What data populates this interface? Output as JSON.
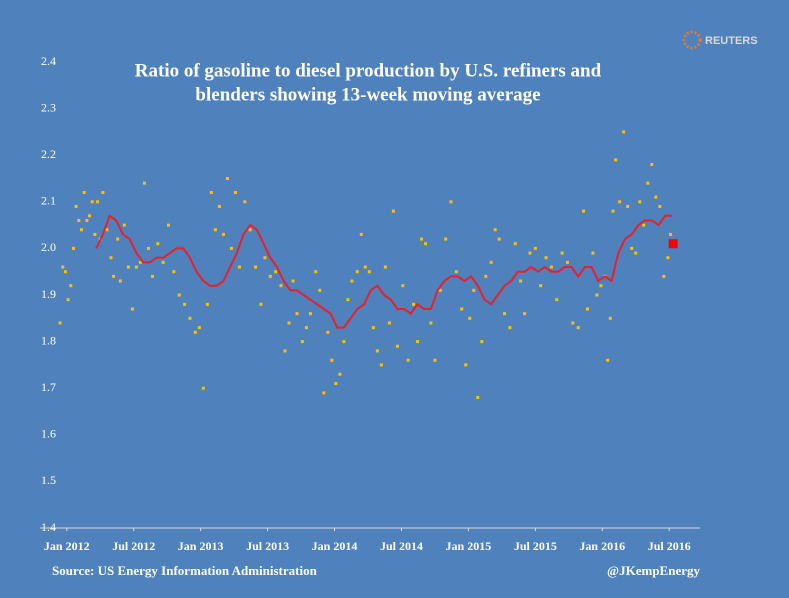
{
  "brand": "REUTERS",
  "chart_data": {
    "type": "scatter",
    "title": [
      "Ratio of  gasoline to diesel production by U.S. refiners and",
      "blenders showing  13-week moving average"
    ],
    "source": "Source: US Energy Information Administration",
    "credit": "@JKempEnergy",
    "xlim": [
      2011.8,
      2016.73
    ],
    "xticks": [
      {
        "value": 2012,
        "label": "Jan 2012"
      },
      {
        "value": 2012.5,
        "label": "Jul 2012"
      },
      {
        "value": 2013,
        "label": "Jan 2013"
      },
      {
        "value": 2013.5,
        "label": "Jul 2013"
      },
      {
        "value": 2014,
        "label": "Jan 2014"
      },
      {
        "value": 2014.5,
        "label": "Jul 2014"
      },
      {
        "value": 2015,
        "label": "Jan 2015"
      },
      {
        "value": 2015.5,
        "label": "Jul 2015"
      },
      {
        "value": 2016,
        "label": "Jan 2016"
      },
      {
        "value": 2016.5,
        "label": "Jul 2016"
      }
    ],
    "ylim": [
      1.4,
      2.4
    ],
    "yticks": [
      1.4,
      1.5,
      1.6,
      1.7,
      1.8,
      1.9,
      {
        "value": 2,
        "label": "2.0"
      },
      2.1,
      2.2,
      2.3,
      2.4
    ],
    "series": [
      {
        "kind": "points",
        "color": "#ffc000",
        "x": [
          2011.95,
          2011.97,
          2011.99,
          2012.01,
          2012.03,
          2012.05,
          2012.07,
          2012.09,
          2012.11,
          2012.13,
          2012.15,
          2012.17,
          2012.19,
          2012.21,
          2012.23,
          2012.25,
          2012.27,
          2012.3,
          2012.33,
          2012.35,
          2012.38,
          2012.4,
          2012.43,
          2012.46,
          2012.49,
          2012.52,
          2012.55,
          2012.58,
          2012.61,
          2012.64,
          2012.68,
          2012.72,
          2012.76,
          2012.8,
          2012.84,
          2012.88,
          2012.92,
          2012.96,
          2012.99,
          2013.02,
          2013.05,
          2013.08,
          2013.11,
          2013.14,
          2013.17,
          2013.2,
          2013.23,
          2013.26,
          2013.29,
          2013.33,
          2013.37,
          2013.41,
          2013.45,
          2013.48,
          2013.52,
          2013.56,
          2013.6,
          2013.63,
          2013.66,
          2013.69,
          2013.72,
          2013.76,
          2013.79,
          2013.82,
          2013.86,
          2013.89,
          2013.92,
          2013.95,
          2013.98,
          2014.01,
          2014.04,
          2014.07,
          2014.1,
          2014.13,
          2014.17,
          2014.2,
          2014.23,
          2014.26,
          2014.29,
          2014.32,
          2014.35,
          2014.38,
          2014.41,
          2014.44,
          2014.47,
          2014.51,
          2014.55,
          2014.59,
          2014.62,
          2014.65,
          2014.68,
          2014.72,
          2014.75,
          2014.79,
          2014.83,
          2014.87,
          2014.91,
          2014.95,
          2014.98,
          2015.01,
          2015.04,
          2015.07,
          2015.1,
          2015.13,
          2015.17,
          2015.2,
          2015.23,
          2015.27,
          2015.31,
          2015.35,
          2015.39,
          2015.42,
          2015.46,
          2015.5,
          2015.54,
          2015.58,
          2015.62,
          2015.66,
          2015.7,
          2015.74,
          2015.78,
          2015.82,
          2015.86,
          2015.89,
          2015.93,
          2015.96,
          2015.99,
          2016.02,
          2016.04,
          2016.06,
          2016.08,
          2016.1,
          2016.13,
          2016.16,
          2016.19,
          2016.22,
          2016.25,
          2016.28,
          2016.31,
          2016.34,
          2016.37,
          2016.4,
          2016.43,
          2016.46,
          2016.49,
          2016.51
        ],
        "values": [
          1.84,
          1.96,
          1.95,
          1.89,
          1.92,
          2.0,
          2.09,
          2.06,
          2.04,
          2.12,
          2.06,
          2.07,
          2.1,
          2.03,
          2.1,
          2.02,
          2.12,
          2.04,
          1.98,
          1.94,
          2.02,
          1.93,
          2.05,
          1.96,
          1.87,
          1.96,
          1.97,
          2.14,
          2.0,
          1.94,
          2.01,
          1.97,
          2.05,
          1.95,
          1.9,
          1.88,
          1.85,
          1.82,
          1.83,
          1.7,
          1.88,
          2.12,
          2.04,
          2.09,
          2.03,
          2.15,
          2.0,
          2.12,
          1.96,
          2.1,
          2.04,
          1.96,
          1.88,
          1.98,
          1.94,
          1.95,
          1.92,
          1.78,
          1.84,
          1.93,
          1.86,
          1.8,
          1.83,
          1.86,
          1.95,
          1.91,
          1.69,
          1.82,
          1.76,
          1.71,
          1.73,
          1.8,
          1.89,
          1.93,
          1.95,
          2.03,
          1.96,
          1.95,
          1.83,
          1.78,
          1.75,
          1.96,
          1.84,
          2.08,
          1.79,
          1.92,
          1.76,
          1.88,
          1.8,
          2.02,
          2.01,
          1.84,
          1.76,
          1.91,
          2.02,
          2.1,
          1.95,
          1.87,
          1.75,
          1.85,
          1.91,
          1.68,
          1.8,
          1.94,
          1.97,
          2.04,
          2.02,
          1.86,
          1.83,
          2.01,
          1.93,
          1.86,
          1.99,
          2.0,
          1.92,
          1.98,
          1.96,
          1.89,
          1.99,
          1.97,
          1.84,
          1.83,
          2.08,
          1.87,
          1.99,
          1.9,
          1.92,
          1.94,
          1.76,
          1.85,
          2.08,
          2.19,
          2.1,
          2.25,
          2.09,
          2.0,
          1.99,
          2.1,
          2.05,
          2.14,
          2.18,
          2.11,
          2.09,
          1.94,
          1.98,
          2.03
        ]
      },
      {
        "kind": "line",
        "color": "#e8202a",
        "x": [
          2012.22,
          2012.27,
          2012.32,
          2012.37,
          2012.42,
          2012.47,
          2012.52,
          2012.57,
          2012.62,
          2012.67,
          2012.72,
          2012.77,
          2012.82,
          2012.87,
          2012.92,
          2012.97,
          2013.02,
          2013.07,
          2013.12,
          2013.17,
          2013.22,
          2013.27,
          2013.32,
          2013.37,
          2013.42,
          2013.47,
          2013.52,
          2013.57,
          2013.62,
          2013.67,
          2013.72,
          2013.77,
          2013.82,
          2013.87,
          2013.92,
          2013.97,
          2014.02,
          2014.07,
          2014.12,
          2014.17,
          2014.22,
          2014.27,
          2014.32,
          2014.37,
          2014.42,
          2014.47,
          2014.52,
          2014.57,
          2014.62,
          2014.67,
          2014.72,
          2014.77,
          2014.82,
          2014.87,
          2014.92,
          2014.97,
          2015.02,
          2015.07,
          2015.12,
          2015.17,
          2015.22,
          2015.27,
          2015.32,
          2015.37,
          2015.42,
          2015.47,
          2015.52,
          2015.57,
          2015.62,
          2015.67,
          2015.72,
          2015.77,
          2015.82,
          2015.87,
          2015.92,
          2015.97,
          2016.02,
          2016.07,
          2016.12,
          2016.17,
          2016.22,
          2016.27,
          2016.32,
          2016.37,
          2016.42,
          2016.47,
          2016.52
        ],
        "values": [
          2.0,
          2.03,
          2.07,
          2.06,
          2.03,
          2.02,
          1.99,
          1.97,
          1.97,
          1.98,
          1.98,
          1.99,
          2.0,
          2.0,
          1.98,
          1.95,
          1.93,
          1.92,
          1.92,
          1.93,
          1.96,
          1.99,
          2.03,
          2.05,
          2.04,
          2.01,
          1.98,
          1.96,
          1.93,
          1.91,
          1.91,
          1.9,
          1.89,
          1.88,
          1.87,
          1.86,
          1.83,
          1.83,
          1.85,
          1.87,
          1.88,
          1.91,
          1.92,
          1.9,
          1.89,
          1.87,
          1.87,
          1.86,
          1.88,
          1.87,
          1.87,
          1.91,
          1.93,
          1.94,
          1.94,
          1.93,
          1.94,
          1.92,
          1.89,
          1.88,
          1.9,
          1.92,
          1.93,
          1.95,
          1.95,
          1.96,
          1.95,
          1.96,
          1.95,
          1.95,
          1.96,
          1.96,
          1.94,
          1.96,
          1.96,
          1.93,
          1.94,
          1.93,
          1.99,
          2.02,
          2.03,
          2.05,
          2.06,
          2.06,
          2.05,
          2.07,
          2.07
        ]
      },
      {
        "kind": "latest",
        "color": "#ff0000",
        "x": [
          2016.53
        ],
        "values": [
          2.01
        ]
      }
    ]
  }
}
